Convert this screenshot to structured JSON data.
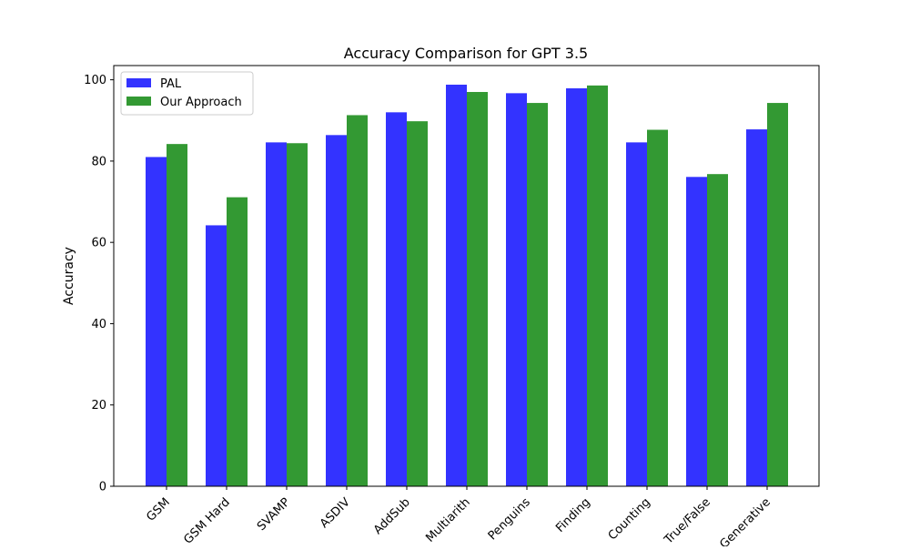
{
  "chart_data": {
    "type": "bar",
    "title": "Accuracy Comparison for GPT 3.5",
    "xlabel": "",
    "ylabel": "Accuracy",
    "ylim": [
      0,
      103.5
    ],
    "yticks": [
      0,
      20,
      40,
      60,
      80,
      100
    ],
    "grid": false,
    "legend_position": "upper-left",
    "categories": [
      "GSM",
      "GSM Hard",
      "SVAMP",
      "ASDIV",
      "AddSub",
      "Multiarith",
      "Penguins",
      "Finding",
      "Counting",
      "True/False",
      "Generative"
    ],
    "series": [
      {
        "name": "PAL",
        "color": "#3333ff",
        "values": [
          81.0,
          64.2,
          84.6,
          86.4,
          92.0,
          98.8,
          96.7,
          97.9,
          84.6,
          76.1,
          87.8
        ]
      },
      {
        "name": "Our Approach",
        "color": "#339933",
        "values": [
          84.2,
          71.1,
          84.4,
          91.3,
          89.8,
          97.0,
          94.3,
          98.6,
          87.7,
          76.8,
          94.3
        ]
      }
    ]
  }
}
